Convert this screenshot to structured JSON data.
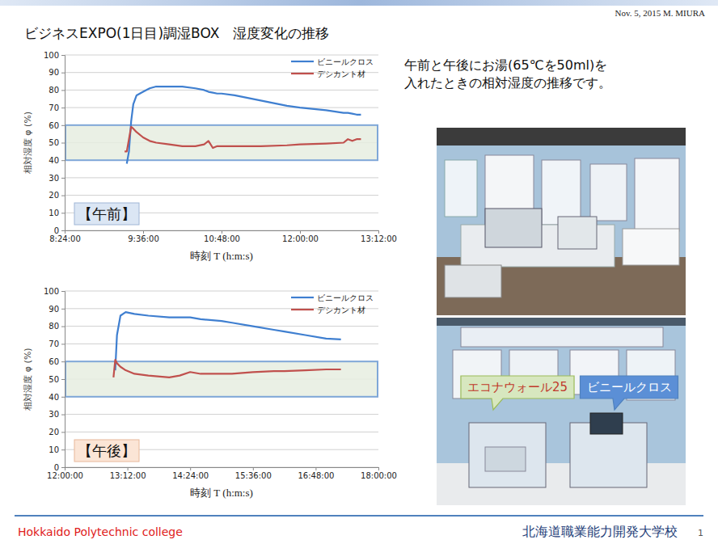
{
  "header": {
    "date_author": "Nov. 5, 2015 M. MIURA",
    "title": "ビジネスEXPO(1日目)調湿BOX　湿度変化の推移"
  },
  "description": [
    "午前と午後にお湯(65℃を50ml)を",
    "入れたときの相対湿度の推移です。"
  ],
  "chart_data": [
    {
      "type": "line",
      "period_label": "【午前】",
      "x": [
        "9:19:00",
        "9:21:00",
        "9:23:00",
        "9:25:00",
        "9:27:00",
        "9:30:00",
        "9:36:00",
        "9:42:00",
        "9:48:00",
        "10:00:00",
        "10:12:00",
        "10:24:00",
        "10:32:00",
        "10:36:00",
        "10:40:00",
        "10:44:00",
        "10:48:00",
        "11:00:00",
        "11:24:00",
        "11:48:00",
        "12:00:00",
        "12:24:00",
        "12:40:00",
        "12:44:00",
        "12:48:00",
        "12:52:00",
        "12:56:00"
      ],
      "xlim": [
        "8:24:00",
        "13:12:00"
      ],
      "xticks": [
        "8:24:00",
        "9:36:00",
        "10:48:00",
        "12:00:00",
        "13:12:00"
      ],
      "ylim": [
        0,
        100
      ],
      "yticks": [
        0,
        10,
        20,
        30,
        40,
        50,
        60,
        70,
        80,
        90,
        100
      ],
      "x_label": "時刻 T (h:m:s)",
      "y_label": "相対湿度 φ (%)",
      "grid": "y",
      "legend": "upper right",
      "highlight_range": [
        40,
        60
      ],
      "series": [
        {
          "name": "ビニールクロス",
          "color": "#3f7fd0",
          "values": [
            null,
            38,
            45,
            62,
            72,
            77,
            79,
            81,
            82,
            82,
            82,
            81,
            80,
            79,
            78.5,
            78,
            78,
            77,
            74,
            71,
            70,
            68.5,
            67,
            67,
            66.5,
            66,
            66
          ]
        },
        {
          "name": "デシカント材",
          "color": "#c0504d",
          "values": [
            45,
            45,
            52,
            59,
            58,
            56,
            53,
            51,
            50,
            49,
            48,
            48,
            49,
            51,
            47,
            48,
            48,
            48,
            48,
            48.5,
            49,
            49.5,
            50,
            52,
            51,
            52,
            52
          ]
        }
      ]
    },
    {
      "type": "line",
      "period_label": "【午後】",
      "x": [
        "12:56:00",
        "12:58:00",
        "13:00:00",
        "13:04:00",
        "13:10:00",
        "13:20:00",
        "13:36:00",
        "14:00:00",
        "14:12:00",
        "14:24:00",
        "14:36:00",
        "15:00:00",
        "15:12:00",
        "15:36:00",
        "16:00:00",
        "16:12:00",
        "16:36:00",
        "17:00:00",
        "17:17:00"
      ],
      "xlim": [
        "12:00:00",
        "18:00:00"
      ],
      "xticks": [
        "12:00:00",
        "13:12:00",
        "14:24:00",
        "15:36:00",
        "16:48:00",
        "18:00:00"
      ],
      "ylim": [
        0,
        100
      ],
      "yticks": [
        0,
        10,
        20,
        30,
        40,
        50,
        60,
        70,
        80,
        90,
        100
      ],
      "x_label": "時刻 T (h:m:s)",
      "y_label": "相対湿度 φ (%)",
      "grid": "y",
      "legend": "upper right",
      "highlight_range": [
        40,
        60
      ],
      "series": [
        {
          "name": "ビニールクロス",
          "color": "#3f7fd0",
          "values": [
            null,
            55,
            75,
            86,
            88,
            87,
            86,
            85,
            85,
            85,
            84,
            83,
            82,
            80,
            78,
            77,
            75,
            73,
            72.5
          ]
        },
        {
          "name": "デシカント材",
          "color": "#c0504d",
          "values": [
            51,
            61,
            59,
            57,
            55,
            53,
            52,
            51,
            52,
            54,
            53,
            53,
            53,
            54,
            54.5,
            54.5,
            55,
            55.5,
            55.5
          ]
        }
      ]
    }
  ],
  "photo_labels": [
    "エコナウォール25",
    "ビニールクロス"
  ],
  "footer": {
    "left": "Hokkaido Polytechnic college",
    "right": "北海道職業能力開発大学校",
    "page": 1
  }
}
